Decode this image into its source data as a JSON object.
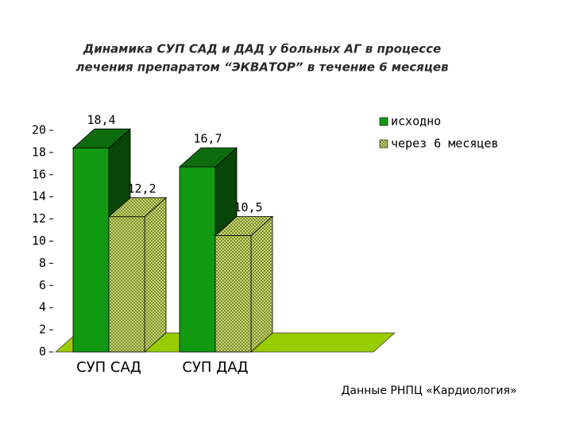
{
  "chart_data": {
    "type": "bar3d",
    "title": [
      "Динамика СУП САД и ДАД у больных АГ  в процессе",
      "лечения препаратом “ЭКВАТОР”  в течение 6 месяцев"
    ],
    "categories": [
      "СУП САД",
      "СУП ДАД"
    ],
    "series": [
      {
        "name": "исходно",
        "color": "#119a11",
        "values": [
          18.4,
          16.7
        ],
        "value_labels": [
          "18,4",
          "16,7"
        ]
      },
      {
        "name": "через 6 месяцев",
        "color": "#c9d96a",
        "values": [
          12.2,
          10.5
        ],
        "value_labels": [
          "12,2",
          "10,5"
        ]
      }
    ],
    "ylim": [
      0,
      20
    ],
    "yticks": [
      0,
      2,
      4,
      6,
      8,
      10,
      12,
      14,
      16,
      18,
      20
    ],
    "floor_color": "#99cc00",
    "legend": "top-right",
    "note": "Данные РНПЦ «Кардиология»"
  }
}
